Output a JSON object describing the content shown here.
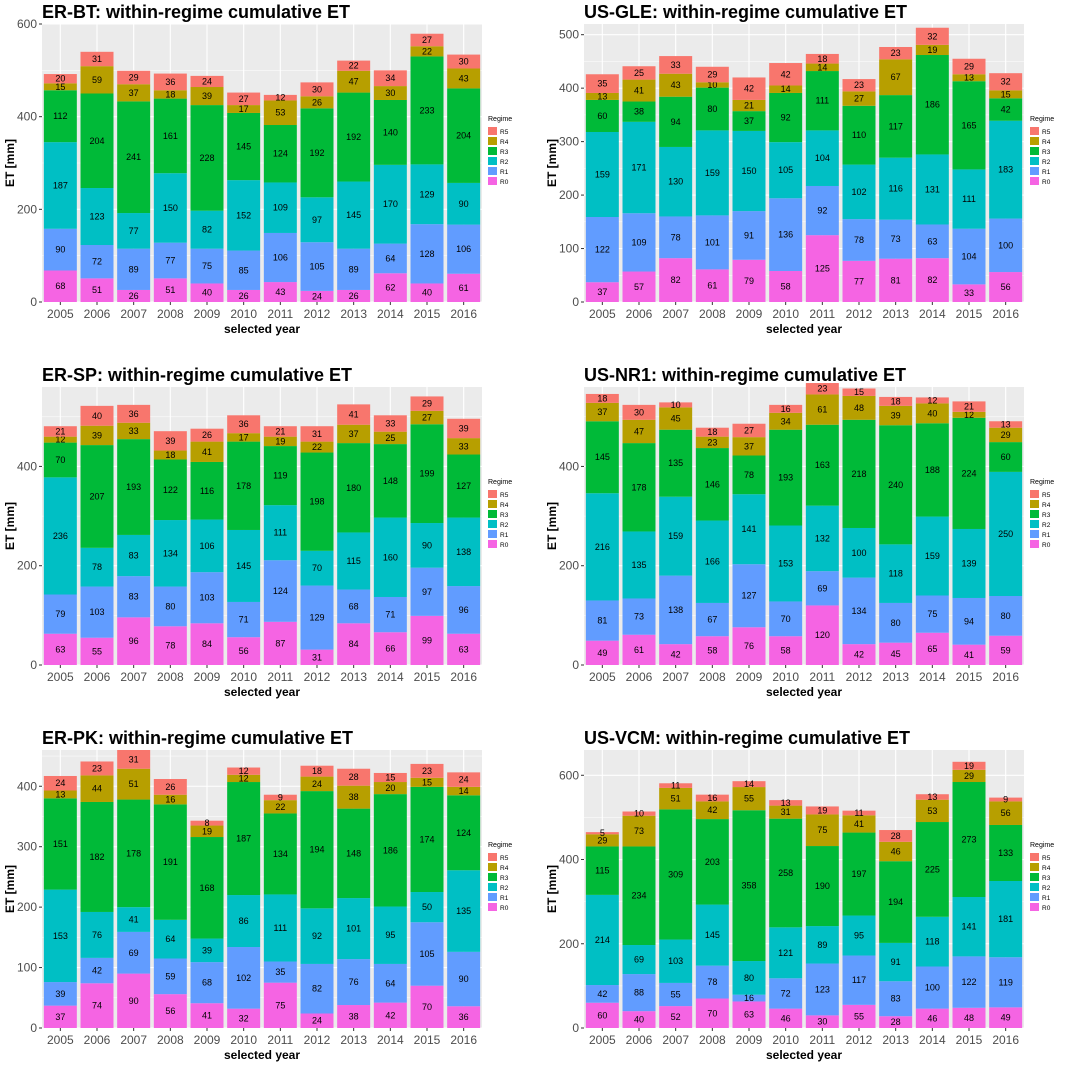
{
  "chart_data": [
    {
      "type": "bar",
      "stacked": true,
      "title": "ER-BT: within-regime cumulative ET",
      "xlabel": "selected year",
      "ylabel": "ET [mm]",
      "ylim": [
        0,
        600
      ],
      "yticks": [
        0,
        200,
        400,
        600
      ],
      "categories": [
        "2005",
        "2006",
        "2007",
        "2008",
        "2009",
        "2010",
        "2011",
        "2012",
        "2013",
        "2014",
        "2015",
        "2016"
      ],
      "series": [
        {
          "name": "R0",
          "values": [
            68,
            51,
            26,
            51,
            40,
            26,
            43,
            24,
            26,
            62,
            40,
            61
          ]
        },
        {
          "name": "R1",
          "values": [
            90,
            72,
            89,
            77,
            75,
            85,
            106,
            105,
            89,
            64,
            128,
            106
          ]
        },
        {
          "name": "R2",
          "values": [
            187,
            123,
            77,
            150,
            82,
            152,
            109,
            97,
            145,
            170,
            129,
            90
          ]
        },
        {
          "name": "R3",
          "values": [
            112,
            204,
            241,
            161,
            228,
            145,
            124,
            192,
            192,
            140,
            233,
            204
          ]
        },
        {
          "name": "R4",
          "values": [
            15,
            59,
            37,
            18,
            39,
            17,
            53,
            26,
            47,
            30,
            22,
            43
          ]
        },
        {
          "name": "R5",
          "values": [
            20,
            31,
            29,
            36,
            24,
            27,
            12,
            30,
            22,
            34,
            27,
            30
          ]
        }
      ],
      "legend_title": "Regime",
      "legend_position": "right"
    },
    {
      "type": "bar",
      "stacked": true,
      "title": "US-GLE: within-regime cumulative ET",
      "xlabel": "selected year",
      "ylabel": "ET [mm]",
      "ylim": [
        0,
        520
      ],
      "yticks": [
        0,
        100,
        200,
        300,
        400,
        500
      ],
      "categories": [
        "2005",
        "2006",
        "2007",
        "2008",
        "2009",
        "2010",
        "2011",
        "2012",
        "2013",
        "2014",
        "2015",
        "2016"
      ],
      "series": [
        {
          "name": "R0",
          "values": [
            37,
            57,
            82,
            61,
            79,
            58,
            125,
            77,
            81,
            82,
            33,
            56
          ]
        },
        {
          "name": "R1",
          "values": [
            122,
            109,
            78,
            101,
            91,
            136,
            92,
            78,
            73,
            63,
            104,
            100
          ]
        },
        {
          "name": "R2",
          "values": [
            159,
            171,
            130,
            159,
            150,
            105,
            104,
            102,
            116,
            131,
            111,
            183
          ]
        },
        {
          "name": "R3",
          "values": [
            60,
            38,
            94,
            80,
            37,
            92,
            111,
            110,
            117,
            186,
            165,
            42
          ]
        },
        {
          "name": "R4",
          "values": [
            13,
            41,
            43,
            10,
            21,
            14,
            14,
            27,
            67,
            19,
            13,
            15
          ]
        },
        {
          "name": "R5",
          "values": [
            35,
            25,
            33,
            29,
            42,
            42,
            18,
            23,
            23,
            32,
            29,
            32
          ]
        }
      ],
      "legend_title": "Regime",
      "legend_position": "right"
    },
    {
      "type": "bar",
      "stacked": true,
      "title": "ER-SP: within-regime cumulative ET",
      "xlabel": "selected year",
      "ylabel": "ET [mm]",
      "ylim": [
        0,
        560
      ],
      "yticks": [
        0,
        200,
        400
      ],
      "categories": [
        "2005",
        "2006",
        "2007",
        "2008",
        "2009",
        "2010",
        "2011",
        "2012",
        "2013",
        "2014",
        "2015",
        "2016"
      ],
      "series": [
        {
          "name": "R0",
          "values": [
            63,
            55,
            96,
            78,
            84,
            56,
            87,
            31,
            84,
            66,
            99,
            63
          ]
        },
        {
          "name": "R1",
          "values": [
            79,
            103,
            83,
            80,
            103,
            71,
            124,
            129,
            68,
            71,
            97,
            96
          ]
        },
        {
          "name": "R2",
          "values": [
            236,
            78,
            83,
            134,
            106,
            145,
            111,
            70,
            115,
            160,
            90,
            138
          ]
        },
        {
          "name": "R3",
          "values": [
            70,
            207,
            193,
            122,
            116,
            178,
            119,
            198,
            180,
            148,
            199,
            127
          ]
        },
        {
          "name": "R4",
          "values": [
            12,
            39,
            33,
            18,
            41,
            17,
            19,
            22,
            37,
            25,
            27,
            33
          ]
        },
        {
          "name": "R5",
          "values": [
            21,
            40,
            36,
            39,
            26,
            36,
            21,
            31,
            41,
            33,
            29,
            39
          ]
        }
      ],
      "legend_title": "Regime",
      "legend_position": "right"
    },
    {
      "type": "bar",
      "stacked": true,
      "title": "US-NR1: within-regime cumulative ET",
      "xlabel": "selected year",
      "ylabel": "ET [mm]",
      "ylim": [
        0,
        560
      ],
      "yticks": [
        0,
        200,
        400
      ],
      "categories": [
        "2005",
        "2006",
        "2007",
        "2008",
        "2009",
        "2010",
        "2011",
        "2012",
        "2013",
        "2014",
        "2015",
        "2016"
      ],
      "series": [
        {
          "name": "R0",
          "values": [
            49,
            61,
            42,
            58,
            76,
            58,
            120,
            42,
            45,
            65,
            41,
            59
          ]
        },
        {
          "name": "R1",
          "values": [
            81,
            73,
            138,
            67,
            127,
            70,
            69,
            134,
            80,
            75,
            94,
            80
          ]
        },
        {
          "name": "R2",
          "values": [
            216,
            135,
            159,
            166,
            141,
            153,
            132,
            100,
            118,
            159,
            139,
            250
          ]
        },
        {
          "name": "R3",
          "values": [
            145,
            178,
            135,
            146,
            78,
            193,
            163,
            218,
            240,
            188,
            224,
            60
          ]
        },
        {
          "name": "R4",
          "values": [
            37,
            47,
            45,
            23,
            37,
            34,
            61,
            48,
            39,
            40,
            12,
            29
          ]
        },
        {
          "name": "R5",
          "values": [
            18,
            30,
            10,
            18,
            27,
            16,
            23,
            15,
            18,
            12,
            21,
            13
          ]
        }
      ],
      "legend_title": "Regime",
      "legend_position": "right"
    },
    {
      "type": "bar",
      "stacked": true,
      "title": "ER-PK: within-regime cumulative ET",
      "xlabel": "selected year",
      "ylabel": "ET [mm]",
      "ylim": [
        0,
        460
      ],
      "yticks": [
        0,
        100,
        200,
        300,
        400
      ],
      "categories": [
        "2005",
        "2006",
        "2007",
        "2008",
        "2009",
        "2010",
        "2011",
        "2012",
        "2013",
        "2014",
        "2015",
        "2016"
      ],
      "series": [
        {
          "name": "R0",
          "values": [
            37,
            74,
            90,
            56,
            41,
            32,
            75,
            24,
            38,
            42,
            70,
            36
          ]
        },
        {
          "name": "R1",
          "values": [
            39,
            42,
            69,
            59,
            68,
            102,
            35,
            82,
            76,
            64,
            105,
            90
          ]
        },
        {
          "name": "R2",
          "values": [
            153,
            76,
            41,
            64,
            39,
            86,
            111,
            92,
            101,
            95,
            50,
            135
          ]
        },
        {
          "name": "R3",
          "values": [
            151,
            182,
            178,
            191,
            168,
            187,
            134,
            194,
            148,
            186,
            174,
            124
          ]
        },
        {
          "name": "R4",
          "values": [
            13,
            44,
            51,
            16,
            19,
            12,
            22,
            24,
            38,
            20,
            15,
            14
          ]
        },
        {
          "name": "R5",
          "values": [
            24,
            23,
            31,
            26,
            8,
            12,
            9,
            18,
            28,
            15,
            23,
            24
          ]
        }
      ],
      "legend_title": "Regime",
      "legend_position": "right"
    },
    {
      "type": "bar",
      "stacked": true,
      "title": "US-VCM: within-regime cumulative ET",
      "xlabel": "selected year",
      "ylabel": "ET [mm]",
      "ylim": [
        0,
        660
      ],
      "yticks": [
        0,
        200,
        400,
        600
      ],
      "categories": [
        "2005",
        "2006",
        "2007",
        "2008",
        "2009",
        "2010",
        "2011",
        "2012",
        "2013",
        "2014",
        "2015",
        "2016"
      ],
      "series": [
        {
          "name": "R0",
          "values": [
            60,
            40,
            52,
            70,
            63,
            46,
            30,
            55,
            28,
            46,
            48,
            49
          ]
        },
        {
          "name": "R1",
          "values": [
            42,
            88,
            55,
            78,
            16,
            72,
            123,
            117,
            83,
            100,
            122,
            119
          ]
        },
        {
          "name": "R2",
          "values": [
            214,
            69,
            103,
            145,
            80,
            121,
            89,
            95,
            91,
            118,
            141,
            181
          ]
        },
        {
          "name": "R3",
          "values": [
            115,
            234,
            309,
            203,
            358,
            258,
            190,
            197,
            194,
            225,
            273,
            133
          ]
        },
        {
          "name": "R4",
          "values": [
            29,
            73,
            51,
            42,
            55,
            31,
            75,
            41,
            46,
            53,
            29,
            56
          ]
        },
        {
          "name": "R5",
          "values": [
            5,
            10,
            11,
            16,
            14,
            13,
            19,
            11,
            28,
            13,
            19,
            9
          ]
        }
      ],
      "legend_title": "Regime",
      "legend_position": "right"
    }
  ],
  "colors": {
    "R0": "#F564E3",
    "R1": "#619CFF",
    "R2": "#00BFC4",
    "R3": "#00BA38",
    "R4": "#B79F00",
    "R5": "#F8766D",
    "panel_bg": "#EBEBEB",
    "grid": "#FFFFFF"
  }
}
